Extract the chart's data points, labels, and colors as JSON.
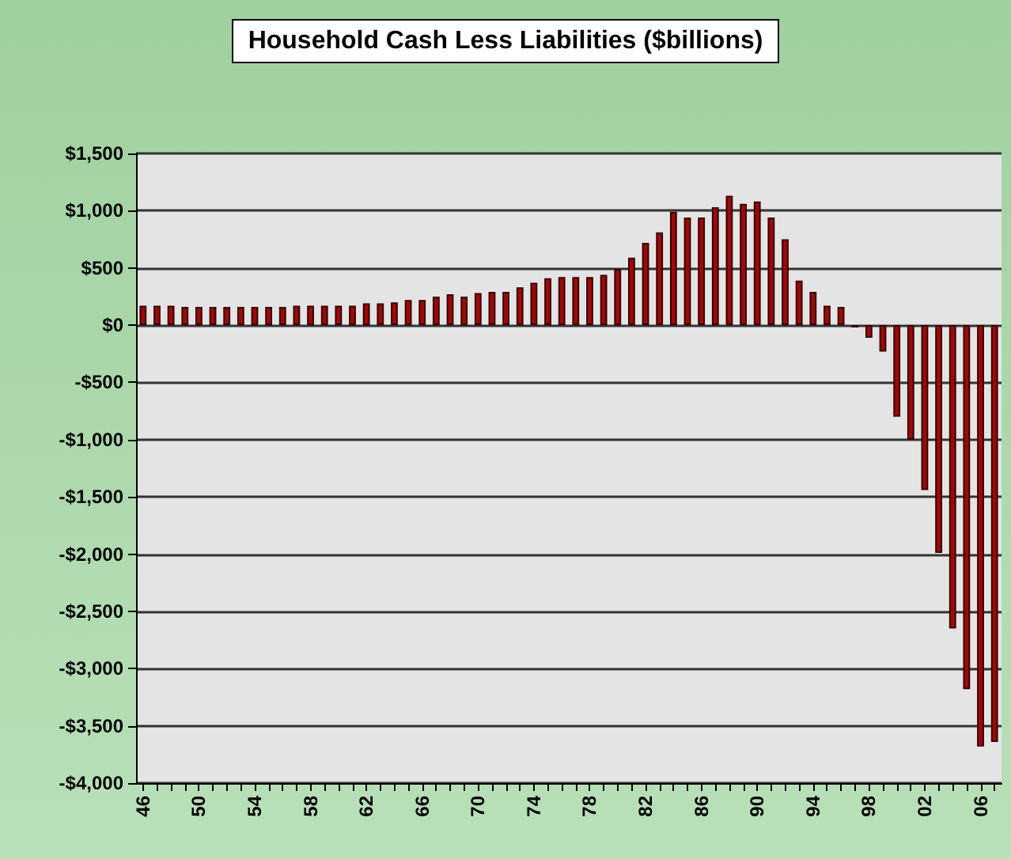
{
  "chart_data": {
    "type": "bar",
    "title": "Household Cash Less Liabilities ($billions)",
    "categories": [
      "46",
      null,
      null,
      null,
      "50",
      null,
      null,
      null,
      "54",
      null,
      null,
      null,
      "58",
      null,
      null,
      null,
      "62",
      null,
      null,
      null,
      "66",
      null,
      null,
      null,
      "70",
      null,
      null,
      null,
      "74",
      null,
      null,
      null,
      "78",
      null,
      null,
      null,
      "82",
      null,
      null,
      null,
      "86",
      null,
      null,
      null,
      "90",
      null,
      null,
      null,
      "94",
      null,
      null,
      null,
      "98",
      null,
      null,
      null,
      "02",
      null,
      null,
      null,
      "06",
      null
    ],
    "values": [
      170,
      170,
      170,
      160,
      160,
      160,
      160,
      160,
      160,
      160,
      160,
      170,
      170,
      170,
      170,
      170,
      190,
      190,
      200,
      220,
      220,
      250,
      270,
      250,
      280,
      290,
      290,
      330,
      370,
      410,
      420,
      420,
      420,
      440,
      490,
      590,
      720,
      810,
      990,
      940,
      940,
      1030,
      1130,
      1060,
      1080,
      940,
      750,
      390,
      290,
      170,
      160,
      -20,
      -110,
      -230,
      -800,
      -1000,
      -1440,
      -1990,
      -2650,
      -3180,
      -3680,
      -3640
    ],
    "color": "#9b0a0a",
    "ylim": [
      -4000,
      1500
    ],
    "yticks": [
      {
        "value": -4000,
        "label": "-$4,000"
      },
      {
        "value": -3500,
        "label": "-$3,500"
      },
      {
        "value": -3000,
        "label": "-$3,000"
      },
      {
        "value": -2500,
        "label": "-$2,500"
      },
      {
        "value": -2000,
        "label": "-$2,000"
      },
      {
        "value": -1500,
        "label": "-$1,500"
      },
      {
        "value": -1000,
        "label": "-$1,000"
      },
      {
        "value": -500,
        "label": "-$500"
      },
      {
        "value": 0,
        "label": "$0"
      },
      {
        "value": 500,
        "label": "$500"
      },
      {
        "value": 1000,
        "label": "$1,000"
      },
      {
        "value": 1500,
        "label": "$1,500"
      }
    ],
    "grid": "y"
  }
}
